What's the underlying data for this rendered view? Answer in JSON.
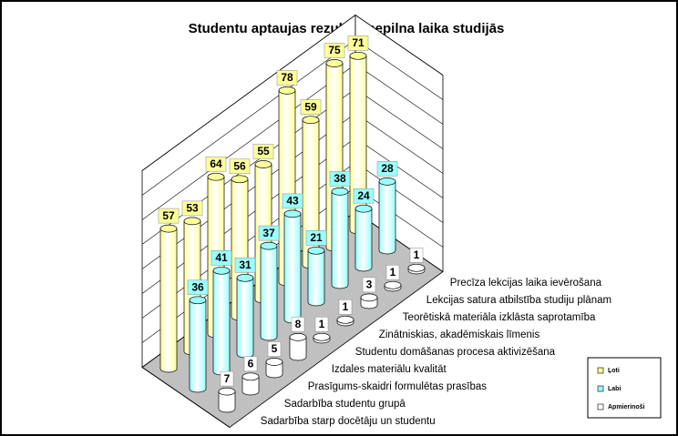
{
  "chart_data": {
    "type": "cylinder3d",
    "title": "Studentu aptaujas rezultāti nepilna laika studijās",
    "categories": [
      "Sadarbība starp docētāju un studentu",
      "Sadarbība studentu grupā",
      "Prasīgums-skaidri formulētas prasības",
      "Izdales materiālu kvalitāt",
      "Studentu domāšanas procesa aktivizēšana",
      "Zinātniskias, akadēmiskais līmenis",
      "Teorētiskā materiāla izklāsta saprotamība",
      "Lekcijas satura atbilstība studiju plānam",
      "Precīza lekcijas laika ievērošana"
    ],
    "series": [
      {
        "name": "Ļoti",
        "color": "#ffff99",
        "values": [
          57,
          53,
          64,
          56,
          55,
          78,
          59,
          75,
          71
        ]
      },
      {
        "name": "Labi",
        "color": "#99ffff",
        "values": [
          36,
          41,
          31,
          37,
          43,
          21,
          38,
          24,
          28
        ]
      },
      {
        "name": "Apmierinoši",
        "color": "#ffffff",
        "values": [
          7,
          6,
          5,
          8,
          1,
          1,
          3,
          1,
          1
        ]
      }
    ],
    "ylim": [
      0,
      80
    ],
    "yticks": [
      0,
      10,
      20,
      30,
      40,
      50,
      60,
      70,
      80
    ],
    "grid": true
  }
}
